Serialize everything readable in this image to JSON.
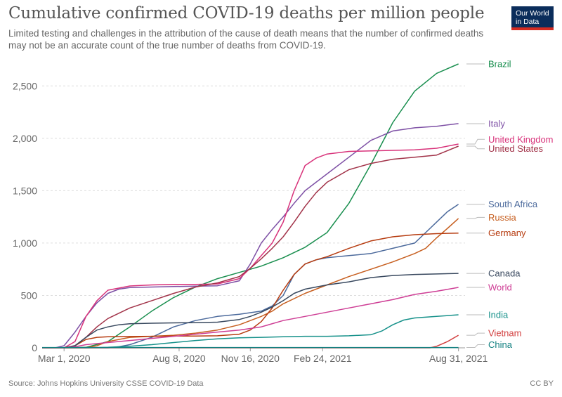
{
  "header": {
    "title": "Cumulative confirmed COVID-19 deaths per million people",
    "subtitle": "Limited testing and challenges in the attribution of the cause of death means that the number of confirmed deaths may not be an accurate count of the true number of deaths from COVID-19.",
    "logo_line1": "Our World",
    "logo_line2": "in Data"
  },
  "footer": {
    "source": "Source: Johns Hopkins University CSSE COVID-19 Data",
    "license": "CC BY"
  },
  "chart_data": {
    "type": "line",
    "title": "Cumulative confirmed COVID-19 deaths per million people",
    "xlabel": "",
    "ylabel": "",
    "x_range": [
      0,
      19.3
    ],
    "ylim": [
      0,
      2750
    ],
    "y_ticks": [
      0,
      500,
      1000,
      1500,
      2000,
      2500
    ],
    "y_tick_labels": [
      "0",
      "500",
      "1,000",
      "1,500",
      "2,000",
      "2,500"
    ],
    "x_ticks": [
      {
        "value": 1,
        "label": "Mar 1, 2020"
      },
      {
        "value": 6.25,
        "label": "Aug 8, 2020"
      },
      {
        "value": 9.5,
        "label": "Nov 16, 2020"
      },
      {
        "value": 12.8,
        "label": "Feb 24, 2021"
      },
      {
        "value": 19.0,
        "label": "Aug 31, 2021"
      }
    ],
    "grid": true,
    "legend": "right",
    "series": [
      {
        "name": "Brazil",
        "color": "#1a8f4f",
        "points": [
          [
            0,
            0
          ],
          [
            1,
            0
          ],
          [
            2,
            5
          ],
          [
            3,
            60
          ],
          [
            4,
            200
          ],
          [
            5,
            350
          ],
          [
            6,
            480
          ],
          [
            7,
            580
          ],
          [
            8,
            660
          ],
          [
            9,
            720
          ],
          [
            10,
            780
          ],
          [
            11,
            860
          ],
          [
            12,
            960
          ],
          [
            13,
            1100
          ],
          [
            14,
            1380
          ],
          [
            15,
            1750
          ],
          [
            16,
            2150
          ],
          [
            17,
            2450
          ],
          [
            18,
            2620
          ],
          [
            19.0,
            2710
          ]
        ]
      },
      {
        "name": "Italy",
        "color": "#7e50a5",
        "points": [
          [
            0,
            0
          ],
          [
            0.6,
            0
          ],
          [
            1.0,
            20
          ],
          [
            1.5,
            150
          ],
          [
            2,
            300
          ],
          [
            2.5,
            430
          ],
          [
            3,
            520
          ],
          [
            3.5,
            560
          ],
          [
            4,
            575
          ],
          [
            5,
            580
          ],
          [
            6,
            585
          ],
          [
            7,
            588
          ],
          [
            8,
            592
          ],
          [
            9,
            640
          ],
          [
            9.5,
            800
          ],
          [
            10,
            1000
          ],
          [
            10.5,
            1130
          ],
          [
            11,
            1250
          ],
          [
            11.5,
            1380
          ],
          [
            12,
            1500
          ],
          [
            12.5,
            1580
          ],
          [
            13,
            1660
          ],
          [
            14,
            1820
          ],
          [
            15,
            1980
          ],
          [
            16,
            2070
          ],
          [
            17,
            2100
          ],
          [
            18,
            2115
          ],
          [
            19.0,
            2140
          ]
        ]
      },
      {
        "name": "United Kingdom",
        "color": "#d8327a",
        "points": [
          [
            0,
            0
          ],
          [
            1,
            0
          ],
          [
            1.5,
            60
          ],
          [
            2,
            300
          ],
          [
            2.5,
            450
          ],
          [
            3,
            550
          ],
          [
            4,
            590
          ],
          [
            5,
            600
          ],
          [
            6,
            605
          ],
          [
            7,
            605
          ],
          [
            8,
            610
          ],
          [
            9,
            660
          ],
          [
            9.5,
            760
          ],
          [
            10,
            880
          ],
          [
            10.5,
            1000
          ],
          [
            11,
            1200
          ],
          [
            11.5,
            1500
          ],
          [
            12,
            1740
          ],
          [
            12.5,
            1810
          ],
          [
            13,
            1850
          ],
          [
            14,
            1875
          ],
          [
            15,
            1880
          ],
          [
            16,
            1885
          ],
          [
            17,
            1890
          ],
          [
            18,
            1905
          ],
          [
            19.0,
            1945
          ]
        ]
      },
      {
        "name": "United States",
        "color": "#a23349",
        "points": [
          [
            0,
            0
          ],
          [
            1,
            0
          ],
          [
            1.5,
            20
          ],
          [
            2,
            100
          ],
          [
            2.5,
            200
          ],
          [
            3,
            280
          ],
          [
            3.5,
            330
          ],
          [
            4,
            380
          ],
          [
            5,
            450
          ],
          [
            6,
            520
          ],
          [
            7,
            580
          ],
          [
            8,
            620
          ],
          [
            9,
            680
          ],
          [
            9.5,
            760
          ],
          [
            10,
            850
          ],
          [
            10.5,
            950
          ],
          [
            11,
            1060
          ],
          [
            11.5,
            1200
          ],
          [
            12,
            1350
          ],
          [
            12.5,
            1480
          ],
          [
            13,
            1580
          ],
          [
            14,
            1700
          ],
          [
            15,
            1760
          ],
          [
            16,
            1800
          ],
          [
            17,
            1820
          ],
          [
            18,
            1840
          ],
          [
            19.0,
            1925
          ]
        ]
      },
      {
        "name": "South Africa",
        "color": "#4c6a9c",
        "points": [
          [
            0,
            0
          ],
          [
            3,
            0
          ],
          [
            3.5,
            10
          ],
          [
            4,
            30
          ],
          [
            5,
            100
          ],
          [
            6,
            200
          ],
          [
            7,
            260
          ],
          [
            8,
            300
          ],
          [
            9,
            320
          ],
          [
            10,
            350
          ],
          [
            10.5,
            400
          ],
          [
            11,
            500
          ],
          [
            11.5,
            700
          ],
          [
            12,
            800
          ],
          [
            12.5,
            840
          ],
          [
            13,
            860
          ],
          [
            14,
            880
          ],
          [
            15,
            900
          ],
          [
            16,
            950
          ],
          [
            17,
            1000
          ],
          [
            17.5,
            1100
          ],
          [
            18,
            1200
          ],
          [
            18.5,
            1300
          ],
          [
            19.0,
            1370
          ]
        ]
      },
      {
        "name": "Russia",
        "color": "#c75f20",
        "points": [
          [
            0,
            0
          ],
          [
            2,
            0
          ],
          [
            2.5,
            20
          ],
          [
            3,
            60
          ],
          [
            4,
            100
          ],
          [
            5,
            110
          ],
          [
            6,
            120
          ],
          [
            7,
            140
          ],
          [
            8,
            170
          ],
          [
            9,
            220
          ],
          [
            10,
            300
          ],
          [
            10.5,
            350
          ],
          [
            11,
            420
          ],
          [
            12,
            520
          ],
          [
            13,
            600
          ],
          [
            14,
            680
          ],
          [
            15,
            750
          ],
          [
            16,
            820
          ],
          [
            17,
            900
          ],
          [
            17.5,
            950
          ],
          [
            18,
            1050
          ],
          [
            18.5,
            1140
          ],
          [
            19.0,
            1235
          ]
        ]
      },
      {
        "name": "Germany",
        "color": "#b63b0f",
        "points": [
          [
            0,
            0
          ],
          [
            1,
            0
          ],
          [
            1.5,
            20
          ],
          [
            2,
            80
          ],
          [
            2.5,
            100
          ],
          [
            3,
            105
          ],
          [
            4,
            108
          ],
          [
            5,
            110
          ],
          [
            6,
            112
          ],
          [
            7,
            113
          ],
          [
            8,
            115
          ],
          [
            9,
            130
          ],
          [
            9.5,
            170
          ],
          [
            10,
            250
          ],
          [
            10.5,
            380
          ],
          [
            11,
            550
          ],
          [
            11.5,
            700
          ],
          [
            12,
            800
          ],
          [
            12.5,
            840
          ],
          [
            13,
            870
          ],
          [
            14,
            950
          ],
          [
            15,
            1020
          ],
          [
            16,
            1060
          ],
          [
            17,
            1080
          ],
          [
            18,
            1090
          ],
          [
            19.0,
            1095
          ]
        ]
      },
      {
        "name": "Canada",
        "color": "#38485e",
        "points": [
          [
            0,
            0
          ],
          [
            1,
            0
          ],
          [
            1.5,
            20
          ],
          [
            2,
            100
          ],
          [
            2.5,
            170
          ],
          [
            3,
            200
          ],
          [
            3.5,
            220
          ],
          [
            4,
            230
          ],
          [
            5,
            235
          ],
          [
            6,
            238
          ],
          [
            7,
            240
          ],
          [
            8,
            245
          ],
          [
            9,
            270
          ],
          [
            9.5,
            300
          ],
          [
            10,
            340
          ],
          [
            10.5,
            390
          ],
          [
            11,
            450
          ],
          [
            11.5,
            520
          ],
          [
            12,
            560
          ],
          [
            12.5,
            580
          ],
          [
            13,
            600
          ],
          [
            14,
            630
          ],
          [
            15,
            670
          ],
          [
            16,
            690
          ],
          [
            17,
            700
          ],
          [
            18,
            705
          ],
          [
            19.0,
            710
          ]
        ]
      },
      {
        "name": "World",
        "color": "#ce3e95",
        "points": [
          [
            0,
            0
          ],
          [
            1,
            0
          ],
          [
            1.5,
            10
          ],
          [
            2,
            30
          ],
          [
            3,
            50
          ],
          [
            4,
            70
          ],
          [
            5,
            90
          ],
          [
            6,
            110
          ],
          [
            7,
            130
          ],
          [
            8,
            150
          ],
          [
            9,
            170
          ],
          [
            10,
            200
          ],
          [
            11,
            260
          ],
          [
            12,
            300
          ],
          [
            13,
            340
          ],
          [
            14,
            380
          ],
          [
            15,
            420
          ],
          [
            16,
            460
          ],
          [
            17,
            510
          ],
          [
            18,
            540
          ],
          [
            19.0,
            577
          ]
        ]
      },
      {
        "name": "India",
        "color": "#16918a",
        "points": [
          [
            0,
            0
          ],
          [
            2,
            0
          ],
          [
            3,
            5
          ],
          [
            4,
            15
          ],
          [
            5,
            30
          ],
          [
            6,
            50
          ],
          [
            7,
            70
          ],
          [
            8,
            85
          ],
          [
            9,
            95
          ],
          [
            10,
            100
          ],
          [
            11,
            105
          ],
          [
            12,
            110
          ],
          [
            13,
            110
          ],
          [
            14,
            115
          ],
          [
            15,
            125
          ],
          [
            15.5,
            160
          ],
          [
            16,
            220
          ],
          [
            16.5,
            265
          ],
          [
            17,
            285
          ],
          [
            18,
            300
          ],
          [
            19.0,
            315
          ]
        ]
      },
      {
        "name": "Vietnam",
        "color": "#d23d3d",
        "points": [
          [
            0,
            0
          ],
          [
            17.7,
            0
          ],
          [
            18.0,
            15
          ],
          [
            18.5,
            60
          ],
          [
            19.0,
            120
          ]
        ]
      },
      {
        "name": "China",
        "color": "#118080",
        "points": [
          [
            0,
            3
          ],
          [
            19.0,
            3
          ]
        ]
      }
    ],
    "label_order_note": "labels at right edge",
    "labels": [
      {
        "name": "Brazil",
        "y": 2710
      },
      {
        "name": "Italy",
        "y": 2140
      },
      {
        "name": "United Kingdom",
        "y": 1990
      },
      {
        "name": "United States",
        "y": 1900
      },
      {
        "name": "South Africa",
        "y": 1370
      },
      {
        "name": "Russia",
        "y": 1245
      },
      {
        "name": "Germany",
        "y": 1095
      },
      {
        "name": "Canada",
        "y": 710
      },
      {
        "name": "World",
        "y": 577
      },
      {
        "name": "India",
        "y": 315
      },
      {
        "name": "Vietnam",
        "y": 140
      },
      {
        "name": "China",
        "y": 30
      }
    ]
  }
}
